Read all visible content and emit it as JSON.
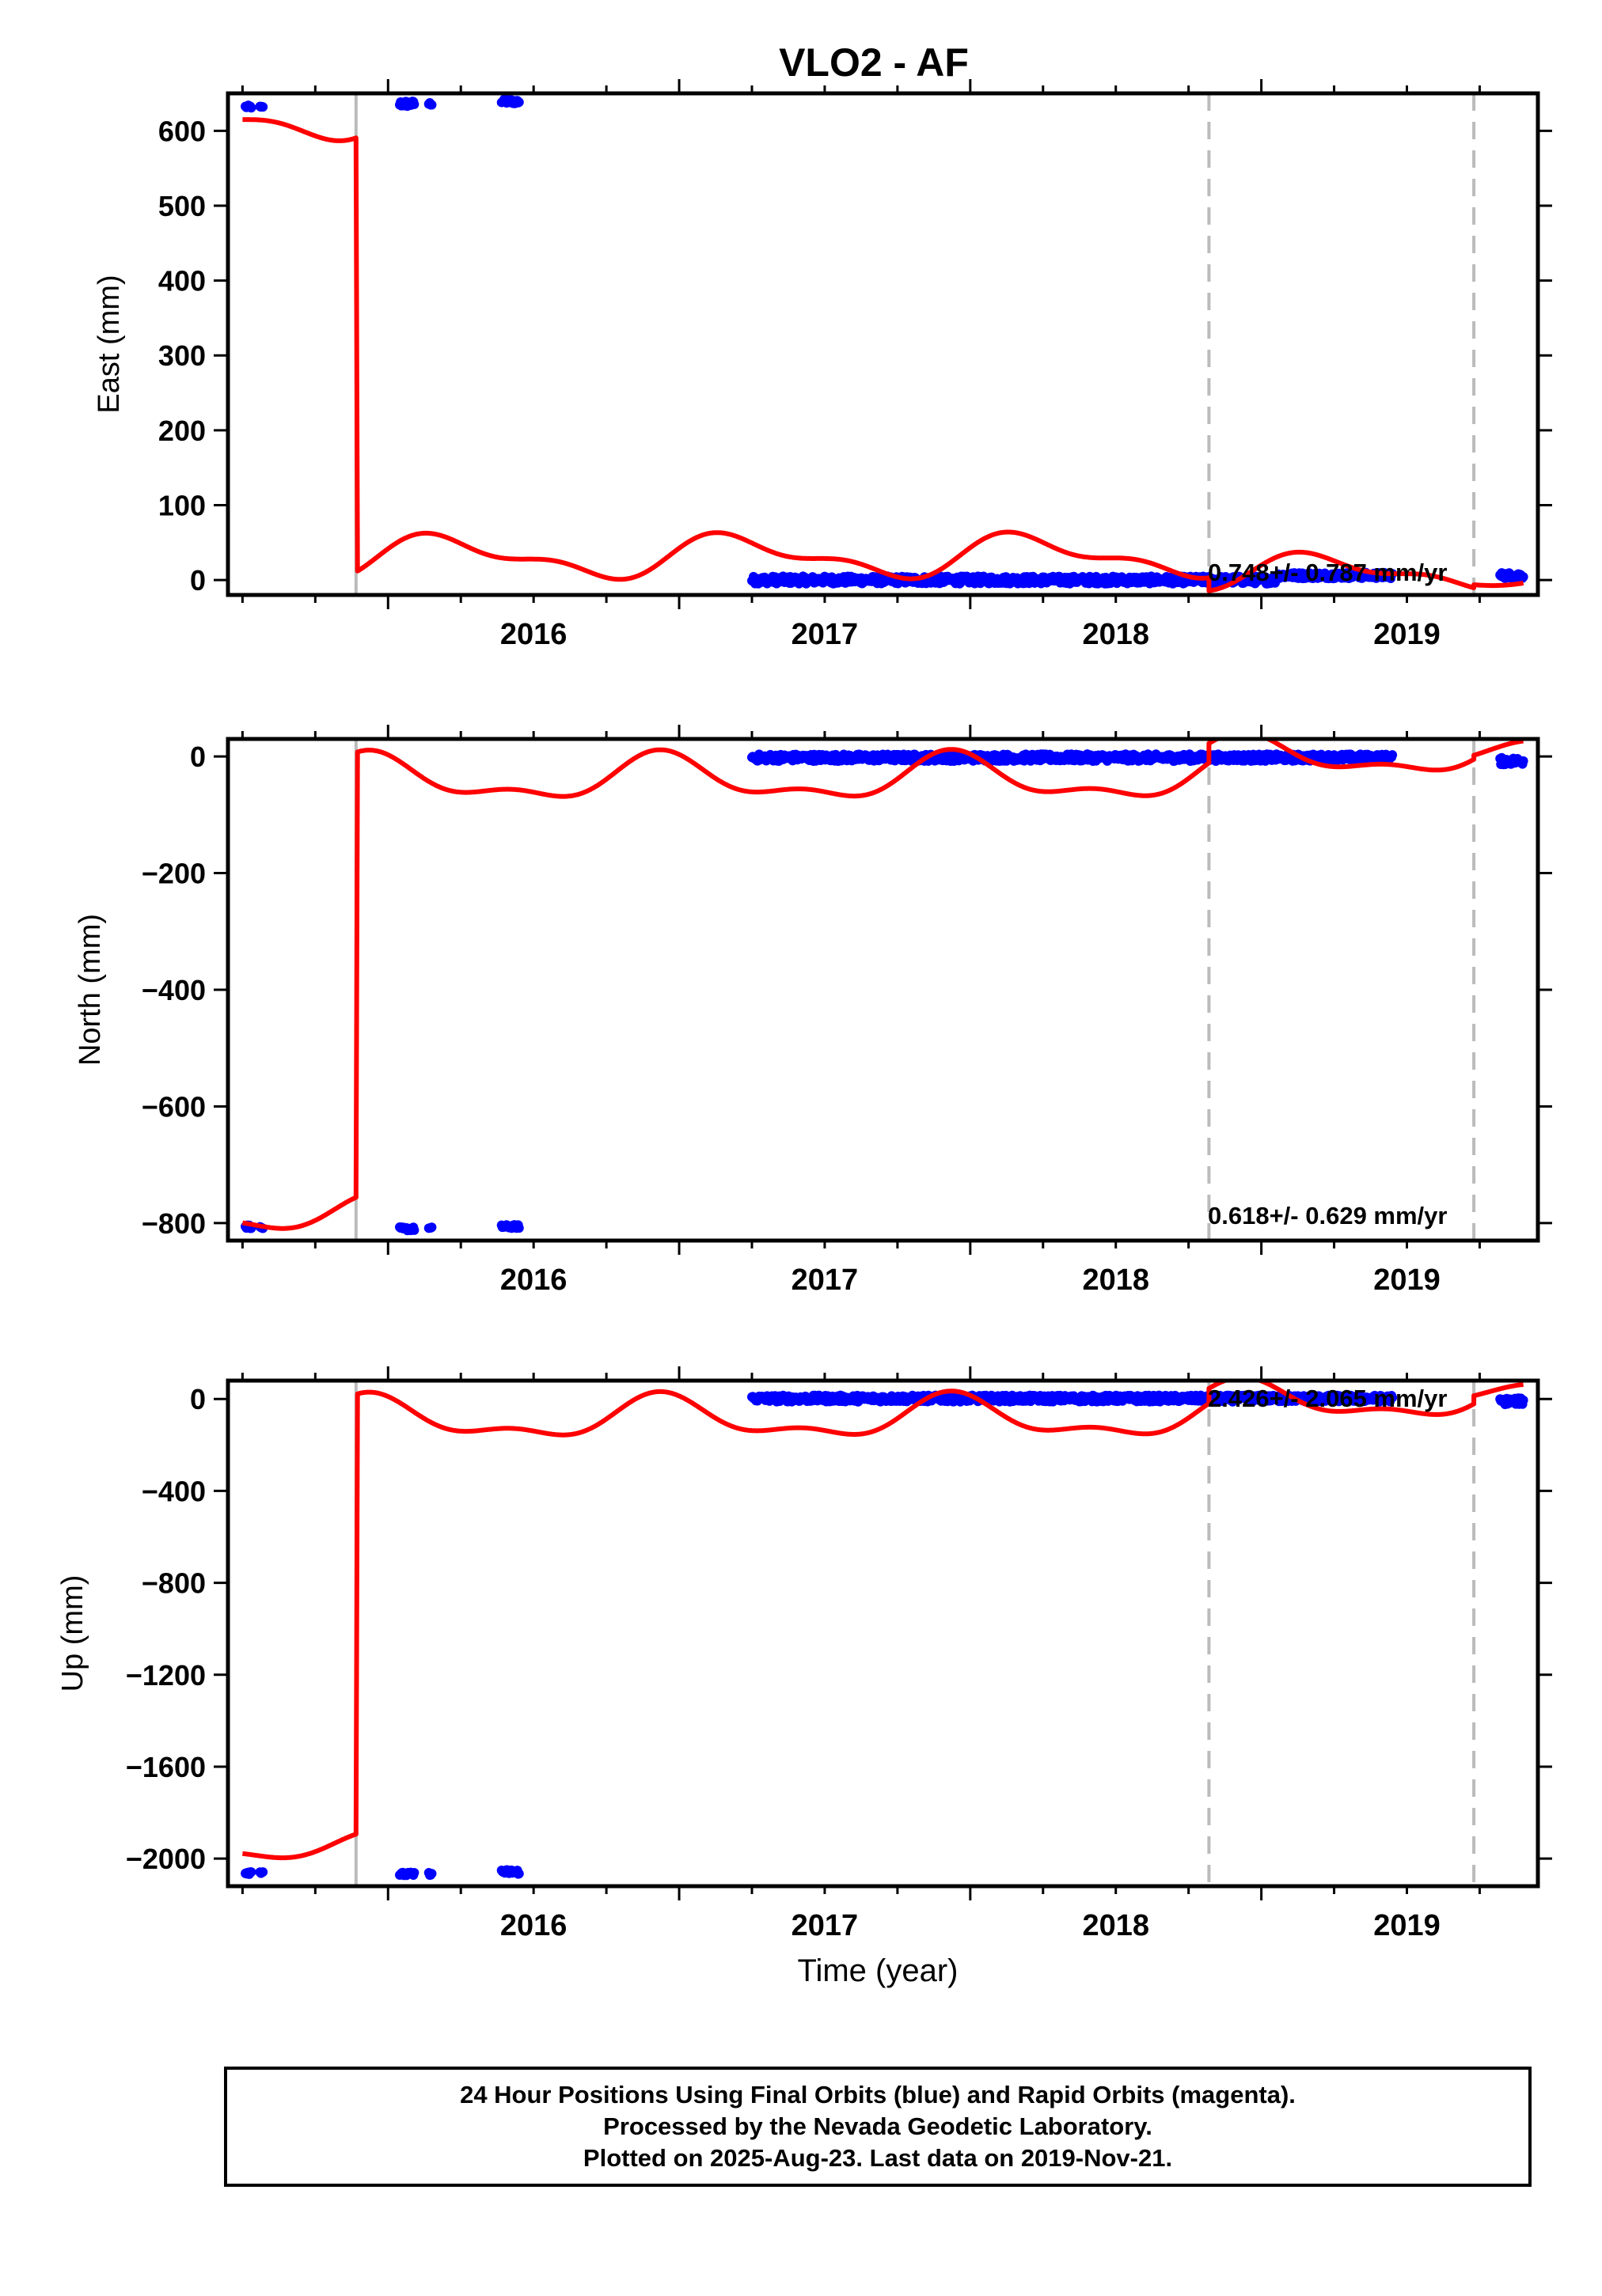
{
  "title": "VLO2 - AF",
  "x_label": "Time (year)",
  "footer": {
    "line1": "24 Hour Positions Using Final Orbits (blue) and Rapid Orbits (magenta).",
    "line2": "Processed by the Nevada Geodetic Laboratory.",
    "line3": "Plotted on 2025-Aug-23. Last data on 2019-Nov-21."
  },
  "colors": {
    "data": "#0000ff",
    "model": "#ff0000",
    "break_line": "#bbbbbb",
    "frame": "#000000"
  },
  "chart_data": [
    {
      "type": "scatter",
      "ylabel": "East (mm)",
      "rate_text": "0.748+/- 0.787 mm/yr",
      "xlim": [
        2015.45,
        2019.95
      ],
      "ylim": [
        -20,
        650
      ],
      "x_ticks": [
        2016,
        2017,
        2018,
        2019
      ],
      "y_ticks": [
        0,
        100,
        200,
        300,
        400,
        500,
        600
      ],
      "grid": false,
      "break_lines": [
        2015.89,
        2018.82,
        2019.73
      ],
      "series": [
        {
          "segments": [
            {
              "x_start": 2015.51,
              "x_end": 2015.53,
              "level": 632,
              "spread": 2
            },
            {
              "x_start": 2015.56,
              "x_end": 2015.57,
              "level": 631,
              "spread": 2
            },
            {
              "x_start": 2016.04,
              "x_end": 2016.09,
              "level": 636,
              "spread": 4
            },
            {
              "x_start": 2016.14,
              "x_end": 2016.15,
              "level": 636,
              "spread": 2
            },
            {
              "x_start": 2016.39,
              "x_end": 2016.45,
              "level": 639,
              "spread": 3
            },
            {
              "x_start": 2017.25,
              "x_end": 2019.05,
              "level": 0,
              "spread": 5
            },
            {
              "x_start": 2019.05,
              "x_end": 2019.45,
              "level": 6,
              "spread": 4
            },
            {
              "x_start": 2019.82,
              "x_end": 2019.9,
              "level": 6,
              "spread": 4
            }
          ]
        },
        {
          "segments": [
            {
              "x_start": 2015.5,
              "x_end": 2015.89,
              "offset": 615,
              "rate": 0.75,
              "amplitude": 22,
              "phase": 0.0
            },
            {
              "x_start": 2015.895,
              "x_end": 2018.82,
              "offset": 30,
              "rate": 0.75,
              "amplitude": 24,
              "phase": 0.3
            },
            {
              "x_start": 2018.82,
              "x_end": 2019.73,
              "offset": 10,
              "rate": 0.75,
              "amplitude": 20,
              "phase": 0.3
            },
            {
              "x_start": 2019.73,
              "x_end": 2019.9,
              "offset": 0,
              "rate": 0.75,
              "amplitude": 6,
              "phase": 0.3
            }
          ]
        }
      ]
    },
    {
      "type": "scatter",
      "ylabel": "North (mm)",
      "rate_text": "0.618+/- 0.629 mm/yr",
      "xlim": [
        2015.45,
        2019.95
      ],
      "ylim": [
        -830,
        30
      ],
      "x_ticks": [
        2016,
        2017,
        2018,
        2019
      ],
      "y_ticks": [
        0,
        -200,
        -400,
        -600,
        -800
      ],
      "grid": false,
      "break_lines": [
        2015.89,
        2018.82,
        2019.73
      ],
      "series": [
        {
          "segments": [
            {
              "x_start": 2015.51,
              "x_end": 2015.53,
              "level": -806,
              "spread": 3
            },
            {
              "x_start": 2015.56,
              "x_end": 2015.57,
              "level": -808,
              "spread": 2
            },
            {
              "x_start": 2016.04,
              "x_end": 2016.09,
              "level": -810,
              "spread": 3
            },
            {
              "x_start": 2016.14,
              "x_end": 2016.15,
              "level": -809,
              "spread": 2
            },
            {
              "x_start": 2016.39,
              "x_end": 2016.45,
              "level": -806,
              "spread": 3
            },
            {
              "x_start": 2017.25,
              "x_end": 2019.45,
              "level": -2,
              "spread": 6
            },
            {
              "x_start": 2019.82,
              "x_end": 2019.9,
              "level": -8,
              "spread": 6
            }
          ]
        },
        {
          "segments": [
            {
              "x_start": 2015.5,
              "x_end": 2015.89,
              "offset": -785,
              "rate": 0.62,
              "amplitude": 26,
              "phase": 1.6
            },
            {
              "x_start": 2015.895,
              "x_end": 2018.82,
              "offset": -40,
              "rate": 0.62,
              "amplitude": 34,
              "phase": 1.9
            },
            {
              "x_start": 2018.82,
              "x_end": 2019.73,
              "offset": 0,
              "rate": 0.62,
              "amplitude": 28,
              "phase": 1.9
            },
            {
              "x_start": 2019.73,
              "x_end": 2019.9,
              "offset": 5,
              "rate": 0.62,
              "amplitude": 15,
              "phase": 1.9
            }
          ]
        }
      ]
    },
    {
      "type": "scatter",
      "ylabel": "Up (mm)",
      "rate_text": "2.426+/- 2.065 mm/yr",
      "xlim": [
        2015.45,
        2019.95
      ],
      "ylim": [
        -2120,
        80
      ],
      "x_ticks": [
        2016,
        2017,
        2018,
        2019
      ],
      "y_ticks": [
        0,
        -400,
        -800,
        -1200,
        -1600,
        -2000
      ],
      "grid": false,
      "break_lines": [
        2015.89,
        2018.82,
        2019.73
      ],
      "series": [
        {
          "segments": [
            {
              "x_start": 2015.51,
              "x_end": 2015.53,
              "level": -2060,
              "spread": 8
            },
            {
              "x_start": 2015.56,
              "x_end": 2015.57,
              "level": -2058,
              "spread": 6
            },
            {
              "x_start": 2016.04,
              "x_end": 2016.09,
              "level": -2068,
              "spread": 8
            },
            {
              "x_start": 2016.14,
              "x_end": 2016.15,
              "level": -2066,
              "spread": 6
            },
            {
              "x_start": 2016.39,
              "x_end": 2016.45,
              "level": -2058,
              "spread": 10
            },
            {
              "x_start": 2017.25,
              "x_end": 2019.45,
              "level": 2,
              "spread": 14
            },
            {
              "x_start": 2019.82,
              "x_end": 2019.9,
              "level": -10,
              "spread": 14
            }
          ]
        },
        {
          "segments": [
            {
              "x_start": 2015.5,
              "x_end": 2015.89,
              "offset": -1950,
              "rate": 2.4,
              "amplitude": 50,
              "phase": 1.6
            },
            {
              "x_start": 2015.895,
              "x_end": 2018.82,
              "offset": -90,
              "rate": 2.4,
              "amplitude": 80,
              "phase": 1.9
            },
            {
              "x_start": 2018.82,
              "x_end": 2019.73,
              "offset": -10,
              "rate": 2.4,
              "amplitude": 70,
              "phase": 1.9
            },
            {
              "x_start": 2019.73,
              "x_end": 2019.9,
              "offset": 20,
              "rate": 2.4,
              "amplitude": 30,
              "phase": 1.9
            }
          ]
        }
      ]
    }
  ]
}
